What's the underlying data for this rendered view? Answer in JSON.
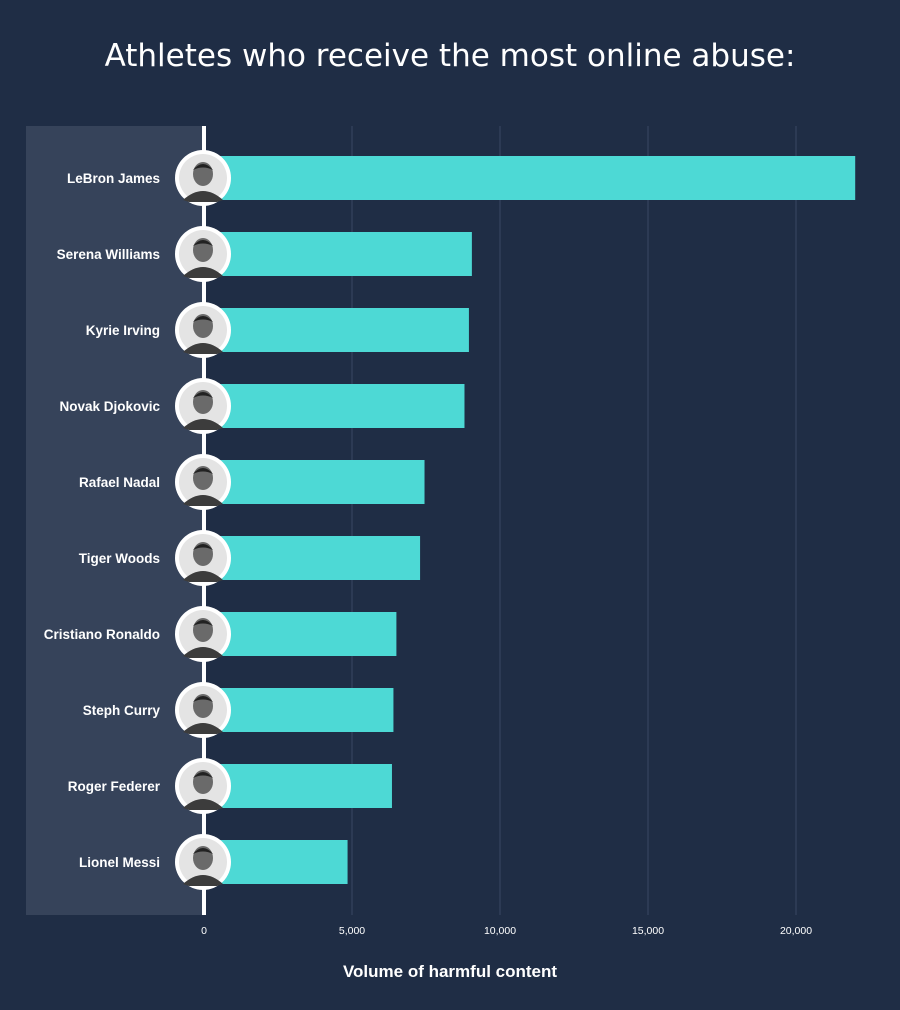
{
  "chart_data": {
    "type": "bar",
    "orientation": "horizontal",
    "title": "Athletes who receive the most online abuse:",
    "xlabel": "Volume of harmful content",
    "ylabel": "",
    "xlim": [
      0,
      22500
    ],
    "x_ticks": [
      0,
      5000,
      10000,
      15000,
      20000
    ],
    "x_tick_labels": [
      "0",
      "5,000",
      "10,000",
      "15,000",
      "20,000"
    ],
    "grid": true,
    "categories": [
      "LeBron James",
      "Serena Williams",
      "Kyrie Irving",
      "Novak Djokovic",
      "Rafael Nadal",
      "Tiger Woods",
      "Cristiano Ronaldo",
      "Steph Curry",
      "Roger Federer",
      "Lionel Messi"
    ],
    "values": [
      22000,
      9050,
      8950,
      8800,
      7450,
      7300,
      6500,
      6400,
      6350,
      4850
    ],
    "colors": {
      "background": "#1f2d45",
      "label_panel": "#36435a",
      "bar": "#4dd9d5",
      "axis": "#ffffff",
      "grid": "#3a4862"
    },
    "icons": "athlete-portrait-icon"
  }
}
